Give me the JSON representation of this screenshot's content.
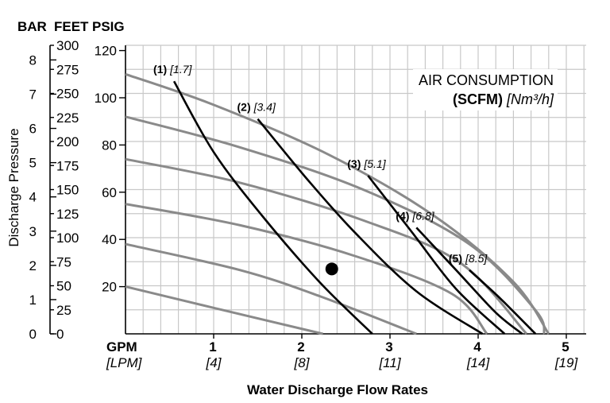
{
  "chart_data": {
    "type": "line",
    "title": "",
    "xlabel": "Water Discharge Flow Rates",
    "ylabel": "Discharge Pressure",
    "y_unit_headers": [
      "BAR",
      "FEET",
      "PSIG"
    ],
    "x_unit_gpm": "GPM",
    "x_unit_lpm": "[LPM]",
    "xlim": [
      0,
      5.2
    ],
    "psig_lim": [
      0,
      120
    ],
    "x_ticks": [
      {
        "value": 1,
        "gpm": "1",
        "lpm": "[4]"
      },
      {
        "value": 2,
        "gpm": "2",
        "lpm": "[8]"
      },
      {
        "value": 3,
        "gpm": "3",
        "lpm": "[11]"
      },
      {
        "value": 4,
        "gpm": "4",
        "lpm": "[14]"
      },
      {
        "value": 5,
        "gpm": "5",
        "lpm": "[19]"
      }
    ],
    "psig_ticks": [
      "20",
      "40",
      "60",
      "80",
      "100",
      "120"
    ],
    "feet_ticks": [
      "0",
      "25",
      "50",
      "75",
      "100",
      "125",
      "150",
      "175",
      "200",
      "225",
      "250",
      "275",
      "300"
    ],
    "bar_ticks": [
      "0",
      "1",
      "2",
      "3",
      "4",
      "5",
      "6",
      "7",
      "8"
    ],
    "grid": true,
    "legend_title_line1": "AIR CONSUMPTION",
    "legend_title_bold": "(SCFM)",
    "legend_title_unit": "[Nm³/h]",
    "legend_placement": "top-right",
    "air_pressure_curves": [
      {
        "psig": 20,
        "x": [
          0,
          1,
          2.24
        ],
        "y": [
          20,
          11,
          0
        ]
      },
      {
        "psig": 40,
        "x": [
          0,
          1.3,
          2.2,
          3.3
        ],
        "y": [
          38,
          27,
          16,
          0
        ]
      },
      {
        "psig": 60,
        "x": [
          0,
          1.3,
          2.6,
          3.7,
          4.1
        ],
        "y": [
          55,
          46,
          33,
          17,
          0
        ]
      },
      {
        "psig": 80,
        "x": [
          0,
          1.3,
          2.7,
          3.8,
          4.55
        ],
        "y": [
          74,
          64,
          48,
          30,
          0
        ]
      },
      {
        "psig": 100,
        "x": [
          0,
          1.3,
          2.7,
          3.9,
          4.65,
          4.75
        ],
        "y": [
          92,
          79,
          61,
          38,
          10,
          0
        ]
      },
      {
        "psig": 120,
        "x": [
          0,
          1.0,
          2.3,
          3.5,
          4.4,
          4.8
        ],
        "y": [
          110,
          97,
          76,
          50,
          22,
          0
        ]
      }
    ],
    "air_consumption_curves": [
      {
        "label_num": "(1)",
        "label_nm": "[1.7]",
        "x": [
          0.55,
          1.0,
          1.55,
          2.2,
          2.8
        ],
        "y": [
          107,
          77,
          50,
          22,
          0
        ]
      },
      {
        "label_num": "(2)",
        "label_nm": "[3.4]",
        "x": [
          1.5,
          2.05,
          2.6,
          3.3,
          4.05
        ],
        "y": [
          91,
          66,
          43,
          18,
          0
        ]
      },
      {
        "label_num": "(3)",
        "label_nm": "[5.1]",
        "x": [
          2.75,
          3.25,
          3.75,
          4.3
        ],
        "y": [
          67,
          43,
          19,
          0
        ]
      },
      {
        "label_num": "(4)",
        "label_nm": "[6.8]",
        "x": [
          3.3,
          3.75,
          4.2,
          4.5
        ],
        "y": [
          45,
          27,
          9,
          0
        ]
      },
      {
        "label_num": "(5)",
        "label_nm": "[8.5]",
        "x": [
          3.9,
          4.25,
          4.65
        ],
        "y": [
          27,
          15,
          0
        ]
      }
    ],
    "operating_point": {
      "x": 2.34,
      "y": 27.5
    }
  }
}
